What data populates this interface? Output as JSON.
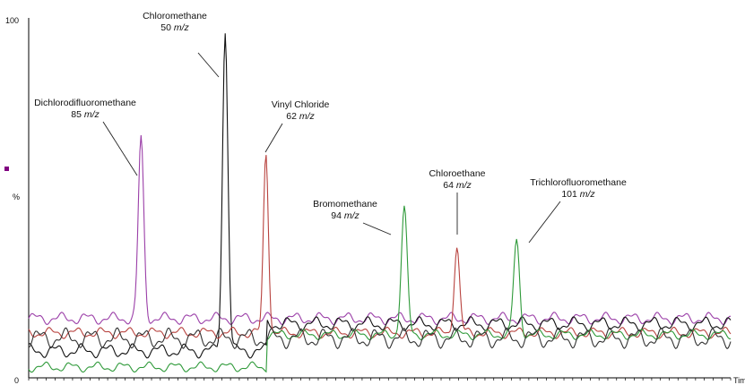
{
  "chart_data": {
    "type": "line",
    "title": "",
    "xlabel": "Tim",
    "ylabel": "%",
    "y_ticks": [
      "100",
      "%",
      "0"
    ],
    "ylim": [
      0,
      100
    ],
    "xlim": [
      0,
      100
    ],
    "grid": false,
    "legend": "none",
    "marker_color": "#800080",
    "series": [
      {
        "color": "#9b3fa8",
        "baseline": 16.5,
        "peaks": [
          {
            "x": 16.0,
            "h": 50,
            "w": 0.55
          }
        ],
        "wiggle": 1.2
      },
      {
        "color": "#111111",
        "baseline": 7.5,
        "peaks": [
          {
            "x": 28.0,
            "h": 89,
            "w": 0.55
          }
        ],
        "wiggle": 1.4,
        "step": {
          "x": 34,
          "to": 15
        }
      },
      {
        "color": "#b8433f",
        "baseline": 12.5,
        "peaks": [
          {
            "x": 33.8,
            "h": 50,
            "w": 0.5
          },
          {
            "x": 61.0,
            "h": 24,
            "w": 0.55
          }
        ],
        "wiggle": 1.1
      },
      {
        "color": "#2f9a3a",
        "baseline": 3.0,
        "peaks": [
          {
            "x": 53.5,
            "h": 35,
            "w": 0.6
          },
          {
            "x": 69.5,
            "h": 26,
            "w": 0.6
          }
        ],
        "wiggle": 1.0,
        "step": {
          "x": 34,
          "to": 12
        }
      },
      {
        "color": "#333333",
        "baseline": 11.0,
        "peaks": [],
        "wiggle": 2.0
      }
    ],
    "annotations": [
      {
        "name": "Dichlorodifluoromethane",
        "mz": "85",
        "mz_unit": "m/z",
        "x": 16.0,
        "peak_y": 66
      },
      {
        "name": "Chloromethane",
        "mz": "50",
        "mz_unit": "m/z",
        "x": 28.0,
        "peak_y": 97
      },
      {
        "name": "Vinyl Chloride",
        "mz": "62",
        "mz_unit": "m/z",
        "x": 33.8,
        "peak_y": 62
      },
      {
        "name": "Bromomethane",
        "mz": "94",
        "mz_unit": "m/z",
        "x": 53.5,
        "peak_y": 47
      },
      {
        "name": "Chloroethane",
        "mz": "64",
        "mz_unit": "m/z",
        "x": 61.0,
        "peak_y": 38
      },
      {
        "name": "Trichlorofluoromethane",
        "mz": "101",
        "mz_unit": "m/z",
        "x": 69.5,
        "peak_y": 40
      }
    ]
  }
}
